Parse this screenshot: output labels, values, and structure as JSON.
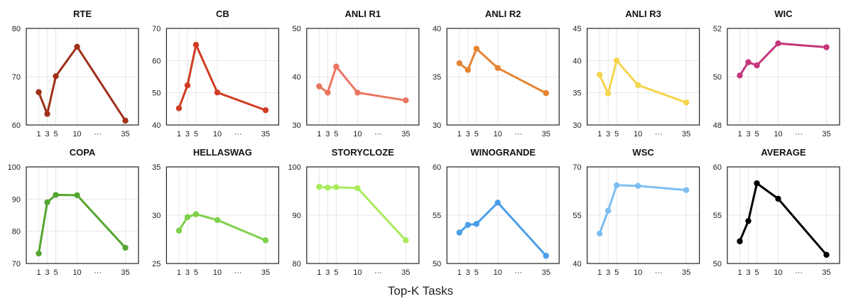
{
  "xlabel": "Top-K Tasks",
  "chart_data": [
    {
      "type": "line",
      "title": "RTE",
      "categories": [
        "1",
        "3",
        "5",
        "10",
        "···",
        "35"
      ],
      "x": [
        1,
        3,
        5,
        10,
        35
      ],
      "ylim": [
        60,
        80
      ],
      "yticks": [
        60,
        70,
        80
      ],
      "color": "#a0301a",
      "series": [
        {
          "values": [
            66.8,
            62.3,
            70.1,
            76.2,
            60.9
          ]
        }
      ]
    },
    {
      "type": "line",
      "title": "CB",
      "categories": [
        "1",
        "3",
        "5",
        "10",
        "···",
        "35"
      ],
      "x": [
        1,
        3,
        5,
        10,
        35
      ],
      "ylim": [
        40,
        70
      ],
      "yticks": [
        40,
        50,
        60,
        70
      ],
      "color": "#d03c22",
      "series": [
        {
          "values": [
            45.2,
            52.3,
            64.9,
            50.1,
            44.6
          ]
        }
      ]
    },
    {
      "type": "line",
      "title": "ANLI R1",
      "categories": [
        "1",
        "3",
        "5",
        "10",
        "···",
        "35"
      ],
      "x": [
        1,
        3,
        5,
        10,
        35
      ],
      "ylim": [
        30,
        50
      ],
      "yticks": [
        30,
        40,
        50
      ],
      "color": "#ea7560",
      "series": [
        {
          "values": [
            38.0,
            36.7,
            42.1,
            36.7,
            35.1
          ]
        }
      ]
    },
    {
      "type": "line",
      "title": "ANLI R2",
      "categories": [
        "1",
        "3",
        "5",
        "10",
        "···",
        "35"
      ],
      "x": [
        1,
        3,
        5,
        10,
        35
      ],
      "ylim": [
        30,
        40
      ],
      "yticks": [
        30,
        35,
        40
      ],
      "color": "#e58332",
      "series": [
        {
          "values": [
            36.4,
            35.7,
            37.9,
            35.9,
            33.3
          ]
        }
      ]
    },
    {
      "type": "line",
      "title": "ANLI R3",
      "categories": [
        "1",
        "3",
        "5",
        "10",
        "···",
        "35"
      ],
      "x": [
        1,
        3,
        5,
        10,
        35
      ],
      "ylim": [
        30,
        45
      ],
      "yticks": [
        30,
        35,
        40,
        45
      ],
      "color": "#f5d44b",
      "series": [
        {
          "values": [
            37.8,
            34.9,
            40.0,
            36.2,
            33.5
          ]
        }
      ]
    },
    {
      "type": "line",
      "title": "WIC",
      "categories": [
        "1",
        "3",
        "5",
        "10",
        "···",
        "35"
      ],
      "x": [
        1,
        3,
        5,
        10,
        35
      ],
      "ylim": [
        48,
        52
      ],
      "yticks": [
        48,
        50,
        52
      ],
      "color": "#c4367a",
      "series": [
        {
          "values": [
            50.05,
            50.6,
            50.47,
            51.38,
            51.22
          ]
        }
      ]
    },
    {
      "type": "line",
      "title": "COPA",
      "categories": [
        "1",
        "3",
        "5",
        "10",
        "···",
        "35"
      ],
      "x": [
        1,
        3,
        5,
        10,
        35
      ],
      "ylim": [
        70,
        100
      ],
      "yticks": [
        70,
        80,
        90,
        100
      ],
      "color": "#55a630",
      "series": [
        {
          "values": [
            73.1,
            89.0,
            91.3,
            91.2,
            74.9
          ]
        }
      ]
    },
    {
      "type": "line",
      "title": "HELLASWAG",
      "categories": [
        "1",
        "3",
        "5",
        "10",
        "···",
        "35"
      ],
      "x": [
        1,
        3,
        5,
        10,
        35
      ],
      "ylim": [
        25,
        35
      ],
      "yticks": [
        25,
        30,
        35
      ],
      "color": "#7ed14a",
      "series": [
        {
          "values": [
            28.4,
            29.8,
            30.1,
            29.5,
            27.4
          ]
        }
      ]
    },
    {
      "type": "line",
      "title": "STORYCLOZE",
      "categories": [
        "1",
        "3",
        "5",
        "10",
        "···",
        "35"
      ],
      "x": [
        1,
        3,
        5,
        10,
        35
      ],
      "ylim": [
        80,
        100
      ],
      "yticks": [
        80,
        90,
        100
      ],
      "color": "#a8ec5c",
      "series": [
        {
          "values": [
            95.9,
            95.7,
            95.8,
            95.6,
            84.8
          ]
        }
      ]
    },
    {
      "type": "line",
      "title": "WINOGRANDE",
      "categories": [
        "1",
        "3",
        "5",
        "10",
        "···",
        "35"
      ],
      "x": [
        1,
        3,
        5,
        10,
        35
      ],
      "ylim": [
        50,
        60
      ],
      "yticks": [
        50,
        55,
        60
      ],
      "color": "#4a9eea",
      "series": [
        {
          "values": [
            53.2,
            54.0,
            54.1,
            56.3,
            50.8
          ]
        }
      ]
    },
    {
      "type": "line",
      "title": "WSC",
      "categories": [
        "1",
        "3",
        "5",
        "10",
        "···",
        "35"
      ],
      "x": [
        1,
        3,
        5,
        10,
        35
      ],
      "ylim": [
        40,
        70
      ],
      "yticks": [
        40,
        55,
        70
      ],
      "color": "#7dbef2",
      "series": [
        {
          "values": [
            49.3,
            56.4,
            64.3,
            64.1,
            62.8
          ]
        }
      ]
    },
    {
      "type": "line",
      "title": "AVERAGE",
      "categories": [
        "1",
        "3",
        "5",
        "10",
        "···",
        "35"
      ],
      "x": [
        1,
        3,
        5,
        10,
        35
      ],
      "ylim": [
        50,
        60
      ],
      "yticks": [
        50,
        55,
        60
      ],
      "color": "#000000",
      "series": [
        {
          "values": [
            52.3,
            54.4,
            58.3,
            56.7,
            50.9
          ]
        }
      ]
    }
  ]
}
